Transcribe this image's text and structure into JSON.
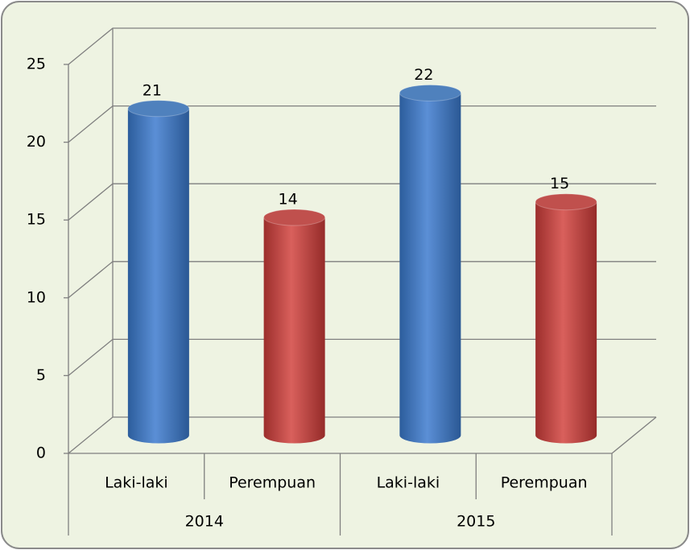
{
  "chart_data": {
    "type": "bar3d",
    "categories": [
      "Laki-laki",
      "Perempuan",
      "Laki-laki",
      "Perempuan"
    ],
    "groups": [
      "2014",
      "2015"
    ],
    "values": [
      21,
      14,
      22,
      15
    ],
    "colors": [
      "#4f81bd",
      "#c0504d",
      "#4f81bd",
      "#c0504d"
    ],
    "ylim": [
      0,
      25
    ],
    "yticks": [
      0,
      5,
      10,
      15,
      20,
      25
    ],
    "grid": true
  }
}
